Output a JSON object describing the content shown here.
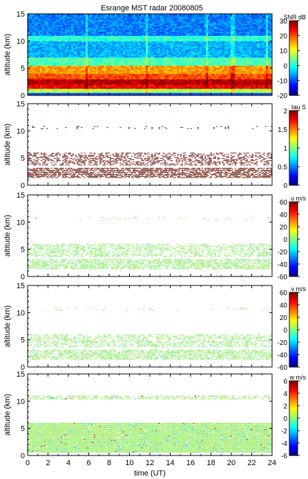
{
  "title": "Esrange MST radar 20080805",
  "xlabel": "time (UT)",
  "chart_data": [
    {
      "type": "heatmap",
      "title": "Esrange MST radar 20080805",
      "ylabel": "altitude (km)",
      "xlabel": "",
      "xlim": [
        0,
        24
      ],
      "ylim": [
        0,
        15
      ],
      "yticks": [
        "0",
        "5",
        "10",
        "15"
      ],
      "colorbar": {
        "label": "SNR dB",
        "range": [
          -20,
          30
        ],
        "ticks": [
          "-20",
          "-10",
          "0",
          "10",
          "20",
          "30"
        ]
      },
      "layers": [
        {
          "altitude_range": [
            0.5,
            1.2
          ],
          "level": 0.55
        },
        {
          "altitude_range": [
            1.2,
            2.0
          ],
          "level": 0.88
        },
        {
          "altitude_range": [
            2.0,
            3.0
          ],
          "level": 0.95
        },
        {
          "altitude_range": [
            3.0,
            4.0
          ],
          "level": 0.8
        },
        {
          "altitude_range": [
            4.0,
            5.5
          ],
          "level": 0.72
        },
        {
          "altitude_range": [
            5.5,
            7.0
          ],
          "level": 0.45
        },
        {
          "altitude_range": [
            7.0,
            10.0
          ],
          "level": 0.3
        },
        {
          "altitude_range": [
            10.0,
            11.0
          ],
          "level": 0.42
        },
        {
          "altitude_range": [
            11.0,
            15.0
          ],
          "level": 0.25
        }
      ]
    },
    {
      "type": "heatmap",
      "title": "",
      "ylabel": "altitude (km)",
      "xlim": [
        0,
        24
      ],
      "ylim": [
        0,
        15
      ],
      "yticks": [
        "0",
        "5",
        "10",
        "15"
      ],
      "colorbar": {
        "label": "tau S",
        "range": [
          0,
          2
        ],
        "ticks": [
          "0",
          "0.5",
          "1",
          "1.5",
          "2"
        ]
      },
      "dominant_color": "#8b4a43",
      "layers": [
        {
          "altitude_range": [
            1.3,
            3.2
          ],
          "density": 0.7
        },
        {
          "altitude_range": [
            3.6,
            6.0
          ],
          "density": 0.45
        },
        {
          "altitude_range": [
            10.3,
            10.9
          ],
          "density": 0.08
        }
      ]
    },
    {
      "type": "heatmap",
      "title": "",
      "ylabel": "altitude (km)",
      "xlim": [
        0,
        24
      ],
      "ylim": [
        0,
        15
      ],
      "yticks": [
        "0",
        "5",
        "10",
        "15"
      ],
      "colorbar": {
        "label": "u m/s",
        "range": [
          -60,
          60
        ],
        "ticks": [
          "-60",
          "-40",
          "-20",
          "0",
          "20",
          "40",
          "60"
        ]
      },
      "dominant_color": "#a6f07a",
      "layers": [
        {
          "altitude_range": [
            1.3,
            3.2
          ],
          "density": 0.55
        },
        {
          "altitude_range": [
            3.6,
            6.0
          ],
          "density": 0.4
        },
        {
          "altitude_range": [
            10.3,
            10.9
          ],
          "density": 0.06
        }
      ]
    },
    {
      "type": "heatmap",
      "title": "",
      "ylabel": "altitude (km)",
      "xlim": [
        0,
        24
      ],
      "ylim": [
        0,
        15
      ],
      "yticks": [
        "0",
        "5",
        "10",
        "15"
      ],
      "colorbar": {
        "label": "v m/s",
        "range": [
          -60,
          60
        ],
        "ticks": [
          "-60",
          "-40",
          "-20",
          "0",
          "20",
          "40",
          "60"
        ]
      },
      "dominant_color": "#a6f07a",
      "layers": [
        {
          "altitude_range": [
            1.3,
            3.2
          ],
          "density": 0.55
        },
        {
          "altitude_range": [
            3.6,
            6.0
          ],
          "density": 0.4
        },
        {
          "altitude_range": [
            10.3,
            10.9
          ],
          "density": 0.06
        }
      ]
    },
    {
      "type": "heatmap",
      "title": "",
      "ylabel": "altitude (km)",
      "xlabel": "time (UT)",
      "xlim": [
        0,
        24
      ],
      "ylim": [
        0,
        15
      ],
      "yticks": [
        "0",
        "5",
        "10",
        "15"
      ],
      "xticks": [
        "0",
        "2",
        "4",
        "6",
        "8",
        "10",
        "12",
        "14",
        "16",
        "18",
        "20",
        "22",
        "24"
      ],
      "colorbar": {
        "label": "w m/s",
        "range": [
          -6,
          6
        ],
        "ticks": [
          "-6",
          "-4",
          "-2",
          "0",
          "2",
          "4",
          "6"
        ]
      },
      "dominant_color": "#a6f07a",
      "layers": [
        {
          "altitude_range": [
            0.5,
            6.0
          ],
          "density": 0.97
        },
        {
          "altitude_range": [
            10.3,
            11.0
          ],
          "density": 0.5
        }
      ]
    }
  ]
}
